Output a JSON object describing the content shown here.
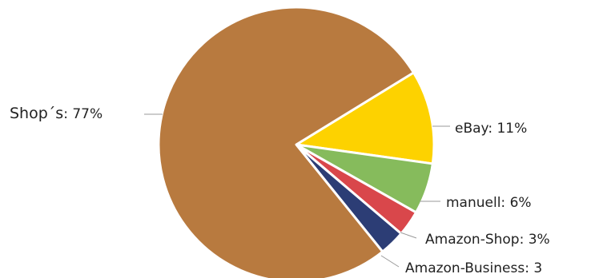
{
  "chart_data": {
    "type": "pie",
    "title": "",
    "slices": [
      {
        "name": "Shop´s",
        "label_name": "Shop´s",
        "label_value": ": 77%",
        "value": 77,
        "color": "#b87a3f"
      },
      {
        "name": "eBay",
        "label_name": "eBay: 11%",
        "label_value": "",
        "value": 11,
        "color": "#fdd200"
      },
      {
        "name": "manuell",
        "label_name": "manuell: 6%",
        "label_value": "",
        "value": 6,
        "color": "#86bb5c"
      },
      {
        "name": "Amazon-Shop",
        "label_name": "Amazon-Shop: 3%",
        "label_value": "",
        "value": 3,
        "color": "#d9474b"
      },
      {
        "name": "Amazon-Business",
        "label_name": "Amazon-Business: 3",
        "label_value": "",
        "value": 3,
        "color": "#2c3d75"
      }
    ],
    "legend": "none"
  }
}
